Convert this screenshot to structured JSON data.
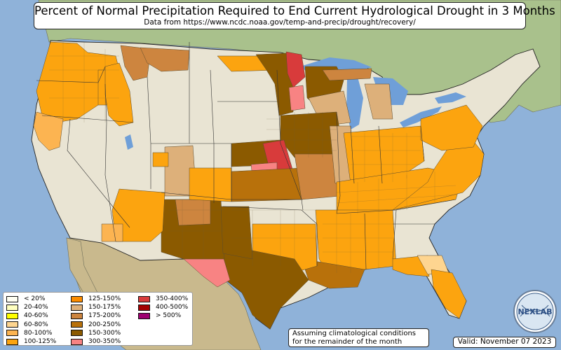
{
  "header": {
    "title": "Percent of Normal Precipitation Required to End Current Hydrological Drought in 3 Months",
    "subtitle": "Data from https://www.ncdc.noaa.gov/temp-and-precip/drought/recovery/"
  },
  "legend": {
    "items": [
      {
        "label": "< 20%",
        "color": "#fffff2"
      },
      {
        "label": "20-40%",
        "color": "#ffffbf"
      },
      {
        "label": "40-60%",
        "color": "#ffff00"
      },
      {
        "label": "60-80%",
        "color": "#fed590"
      },
      {
        "label": "80-100%",
        "color": "#fcb451"
      },
      {
        "label": "100-125%",
        "color": "#fca40f"
      },
      {
        "label": "125-150%",
        "color": "#fc8c00"
      },
      {
        "label": "150-175%",
        "color": "#ddb07a"
      },
      {
        "label": "175-200%",
        "color": "#cd853f"
      },
      {
        "label": "200-250%",
        "color": "#b8710b"
      },
      {
        "label": "150-300%",
        "color": "#8b5a00"
      },
      {
        "label": "300-350%",
        "color": "#f88383"
      },
      {
        "label": "350-400%",
        "color": "#d83b3b"
      },
      {
        "label": "400-500%",
        "color": "#a30000"
      },
      {
        "label": "> 500%",
        "color": "#9e0070"
      }
    ]
  },
  "note": {
    "line1": "Assuming climatological conditions",
    "line2": "for the remainder of the month"
  },
  "valid_label": "Valid: November 07 2023",
  "logo_text": "NEXLAB",
  "colors": {
    "ocean": "#8fb2d9",
    "land": "#e9e4d3",
    "canada": "#a9c18c",
    "lakes": "#6f9fd8"
  }
}
